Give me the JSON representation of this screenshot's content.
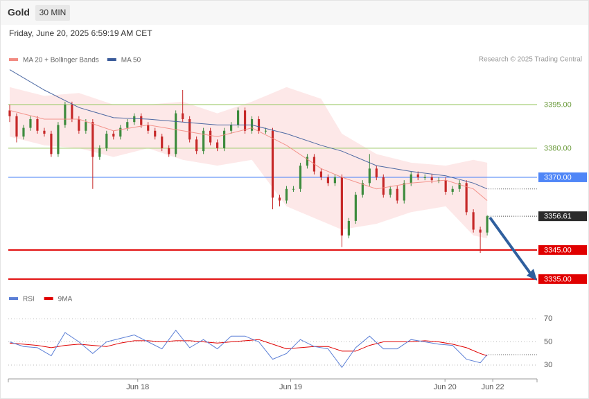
{
  "chart_data": {
    "type": "candlestick",
    "title": "Gold",
    "interval": "30 MIN",
    "subtitle": "Friday, June 20, 2025 6:59:19 AM CET",
    "credit": "Research © 2025 Trading Central",
    "legend": [
      {
        "name": "MA 20 + Bollinger Bands",
        "color": "#f28b82"
      },
      {
        "name": "MA 50",
        "color": "#3b5b9a"
      }
    ],
    "xlim": [
      -0.2,
      76.2
    ],
    "xticks": [
      {
        "value": 18.5,
        "label": "Jun 18"
      },
      {
        "value": 40.6,
        "label": "Jun 19"
      },
      {
        "value": 62.9,
        "label": "Jun 20"
      },
      {
        "value": 69.8,
        "label": "Jun 22"
      }
    ],
    "ylim": [
      3333.3,
      3408.1
    ],
    "up_color": "#3d8b3d",
    "down_color": "#c62828",
    "open": [
      3393,
      3391,
      3384,
      3387,
      3390,
      3386,
      3385,
      3378,
      3388,
      3395,
      3390,
      3386,
      3389,
      3377,
      3380,
      3385,
      3384,
      3387,
      3389,
      3391,
      3388,
      3386,
      3384,
      3380,
      3378,
      3392,
      3390,
      3383,
      3379,
      3386,
      3382,
      3380,
      3386,
      3388,
      3393,
      3386,
      3390,
      3386,
      3386,
      3363,
      3362,
      3366,
      3366,
      3374,
      3377,
      3372,
      3370,
      3368,
      3370,
      3350,
      3355,
      3364,
      3368,
      3373,
      3370,
      3364,
      3366,
      3362,
      3368,
      3371,
      3370,
      3370,
      3369,
      3369,
      3365,
      3366,
      3368,
      3358,
      3352,
      3351
    ],
    "close": [
      3391,
      3384,
      3387,
      3390,
      3386,
      3385,
      3378,
      3388,
      3395,
      3390,
      3386,
      3389,
      3377,
      3380,
      3385,
      3384,
      3387,
      3389,
      3391,
      3388,
      3386,
      3384,
      3380,
      3378,
      3392,
      3390,
      3383,
      3379,
      3386,
      3382,
      3380,
      3386,
      3388,
      3393,
      3386,
      3390,
      3386,
      3386,
      3363,
      3362,
      3366,
      3366,
      3374,
      3377,
      3372,
      3370,
      3368,
      3370,
      3350,
      3355,
      3364,
      3368,
      3373,
      3370,
      3364,
      3366,
      3362,
      3368,
      3371,
      3370,
      3370,
      3369,
      3369,
      3365,
      3366,
      3368,
      3358,
      3352,
      3351,
      3356.61
    ],
    "high": [
      3395,
      3392,
      3388,
      3391,
      3391,
      3387,
      3386,
      3389,
      3396,
      3396,
      3391,
      3390,
      3390,
      3381,
      3386,
      3386,
      3388,
      3390,
      3392,
      3392,
      3389,
      3387,
      3385,
      3381,
      3393,
      3400,
      3391,
      3384,
      3387,
      3387,
      3383,
      3387,
      3389,
      3394,
      3394,
      3391,
      3391,
      3387,
      3387,
      3364,
      3367,
      3367,
      3375,
      3378,
      3378,
      3373,
      3371,
      3371,
      3371,
      3356,
      3365,
      3369,
      3378,
      3374,
      3371,
      3367,
      3367,
      3369,
      3372,
      3372,
      3371,
      3371,
      3370,
      3370,
      3367,
      3369,
      3369,
      3359,
      3353,
      3357
    ],
    "low": [
      3389,
      3382,
      3383,
      3386,
      3385,
      3384,
      3377,
      3377,
      3387,
      3389,
      3385,
      3385,
      3366,
      3376,
      3379,
      3383,
      3383,
      3386,
      3388,
      3387,
      3385,
      3383,
      3379,
      3377,
      3377,
      3389,
      3382,
      3378,
      3378,
      3381,
      3379,
      3379,
      3385,
      3387,
      3385,
      3385,
      3385,
      3385,
      3359,
      3360,
      3361,
      3365,
      3365,
      3373,
      3371,
      3369,
      3367,
      3367,
      3346,
      3349,
      3354,
      3363,
      3367,
      3369,
      3363,
      3363,
      3361,
      3361,
      3367,
      3369,
      3369,
      3368,
      3368,
      3364,
      3364,
      3365,
      3357,
      3351,
      3344,
      3350
    ],
    "overlay_x": [
      0,
      5,
      10,
      15,
      20,
      25,
      30,
      35,
      40,
      45,
      48,
      53,
      58,
      63,
      67,
      69
    ],
    "series": [
      {
        "name": "MA 50",
        "color": "#3b5b9a",
        "values": [
          3407,
          3400,
          3394,
          3390.5,
          3390,
          3389,
          3388,
          3388,
          3385,
          3381,
          3379,
          3374,
          3372,
          3370.5,
          3368,
          3366
        ]
      },
      {
        "name": "MA 20",
        "color": "#f28b82",
        "values": [
          3393,
          3390,
          3390,
          3386,
          3388,
          3386,
          3384,
          3387,
          3381,
          3373,
          3370,
          3366,
          3368,
          3369,
          3366,
          3362
        ]
      }
    ],
    "bands": {
      "color": "#fde2e2",
      "upper": [
        3401,
        3398,
        3399,
        3395,
        3395,
        3396,
        3392,
        3396,
        3401,
        3397,
        3385,
        3378,
        3375,
        3374,
        3376,
        3375
      ],
      "lower": [
        3384,
        3381,
        3380,
        3377,
        3380,
        3376,
        3374,
        3376,
        3360,
        3355,
        3352,
        3354,
        3358,
        3360,
        3350,
        3349
      ]
    },
    "levels": [
      {
        "value": 3395,
        "label": "3395.00",
        "color": "#a8cf7a",
        "style": "text"
      },
      {
        "value": 3380,
        "label": "3380.00",
        "color": "#a8cf7a",
        "style": "text"
      },
      {
        "value": 3370,
        "label": "3370.00",
        "color": "#4f86f7",
        "style": "box"
      },
      {
        "value": 3345,
        "label": "3345.00",
        "color": "#e00000",
        "style": "box"
      },
      {
        "value": 3335,
        "label": "3335.00",
        "color": "#e00000",
        "style": "box"
      }
    ],
    "last_price": {
      "value": 3356.61,
      "label": "3356.61"
    },
    "rsi": {
      "legend": [
        {
          "name": "RSI",
          "color": "#5b7fd6"
        },
        {
          "name": "9MA",
          "color": "#e00000"
        }
      ],
      "ylim": [
        19.25,
        79
      ],
      "yticks": [
        70,
        50,
        30
      ],
      "x": [
        0,
        2,
        4,
        6,
        8,
        10,
        12,
        14,
        16,
        18,
        20,
        22,
        24,
        26,
        28,
        30,
        32,
        34,
        36,
        38,
        40,
        42,
        44,
        46,
        48,
        50,
        52,
        54,
        56,
        58,
        60,
        62,
        64,
        66,
        68,
        69
      ],
      "values": [
        50,
        46,
        45,
        38,
        58,
        50,
        40,
        50,
        53,
        56,
        50,
        44,
        60,
        45,
        52,
        44,
        55,
        55,
        50,
        35,
        40,
        52,
        46,
        44,
        28,
        45,
        55,
        44,
        44,
        52,
        50,
        48,
        47,
        35,
        32,
        39
      ],
      "ma": [
        49,
        48,
        47,
        45,
        47,
        48,
        47,
        46,
        49,
        51,
        51,
        50,
        51,
        51,
        50,
        49,
        50,
        51,
        52,
        48,
        44,
        45,
        46,
        46,
        42,
        42,
        47,
        50,
        50,
        50,
        51,
        50,
        48,
        45,
        40,
        38
      ]
    }
  }
}
